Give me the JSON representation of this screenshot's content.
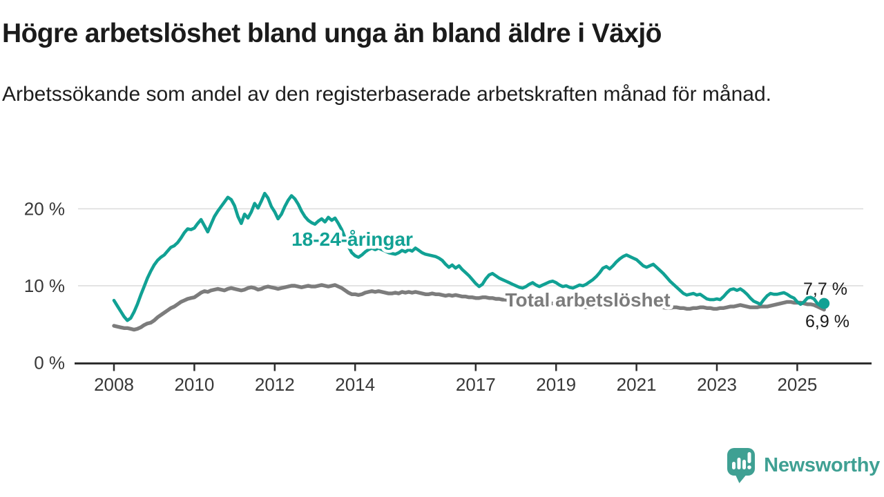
{
  "header": {
    "title": "Högre arbetslöshet bland unga än bland äldre i Växjö",
    "subtitle": "Arbetssökande som andel av den registerbaserade arbetskraften månad för månad."
  },
  "branding": {
    "logo_text": "Newsworthy",
    "logo_icon": "speech-bubble-bar-chart-icon",
    "color": "#3fa093"
  },
  "chart_data": {
    "type": "line",
    "unit": "%",
    "x": {
      "start_year": 2008,
      "start_month": 1,
      "points_per_month": 1,
      "end": "2025-09"
    },
    "x_axis": {
      "tick_years": [
        2008,
        2010,
        2012,
        2014,
        2017,
        2019,
        2021,
        2023,
        2025
      ]
    },
    "y_axis": {
      "ticks": [
        0,
        10,
        20
      ],
      "tick_labels": [
        "0 %",
        "10 %",
        "20 %"
      ],
      "range": [
        0,
        23.5
      ]
    },
    "grid": {
      "horizontal": true,
      "color": "#dadada"
    },
    "axis_color": "#2d2d2d",
    "text_color": "#383838",
    "value_label_color": "#1a1a1a",
    "series": [
      {
        "name": "Total arbetslöshet",
        "color": "#7c7c7c",
        "end_value_label": "6,9 %",
        "values": [
          4.8,
          4.7,
          4.6,
          4.5,
          4.5,
          4.4,
          4.3,
          4.4,
          4.6,
          4.9,
          5.1,
          5.2,
          5.5,
          5.9,
          6.2,
          6.5,
          6.8,
          7.1,
          7.3,
          7.6,
          7.9,
          8.1,
          8.3,
          8.4,
          8.5,
          8.8,
          9.1,
          9.3,
          9.2,
          9.4,
          9.5,
          9.6,
          9.5,
          9.4,
          9.6,
          9.7,
          9.6,
          9.5,
          9.4,
          9.5,
          9.7,
          9.8,
          9.7,
          9.5,
          9.6,
          9.8,
          9.9,
          9.8,
          9.7,
          9.6,
          9.7,
          9.8,
          9.9,
          10.0,
          10.0,
          9.9,
          9.8,
          9.9,
          10.0,
          9.9,
          9.9,
          10.0,
          10.1,
          10.0,
          9.9,
          10.0,
          10.1,
          9.9,
          9.7,
          9.4,
          9.1,
          8.9,
          8.9,
          8.8,
          8.9,
          9.1,
          9.2,
          9.3,
          9.2,
          9.3,
          9.2,
          9.1,
          9.0,
          9.0,
          9.1,
          9.0,
          9.2,
          9.1,
          9.2,
          9.1,
          9.2,
          9.1,
          9.0,
          8.9,
          8.9,
          9.0,
          8.9,
          8.9,
          8.8,
          8.7,
          8.8,
          8.7,
          8.8,
          8.7,
          8.6,
          8.6,
          8.5,
          8.5,
          8.4,
          8.4,
          8.5,
          8.5,
          8.4,
          8.4,
          8.3,
          8.3,
          8.2,
          8.2,
          8.1,
          8.1,
          8.0,
          8.0,
          7.9,
          7.9,
          8.0,
          8.0,
          7.9,
          7.8,
          7.8,
          7.8,
          7.7,
          7.7,
          7.7,
          7.6,
          7.5,
          7.5,
          7.4,
          7.4,
          7.3,
          7.3,
          7.2,
          7.2,
          7.2,
          7.2,
          7.3,
          7.4,
          7.7,
          7.9,
          8.0,
          8.0,
          7.9,
          7.9,
          7.8,
          7.7,
          7.7,
          7.6,
          7.6,
          7.5,
          7.5,
          7.4,
          7.4,
          7.3,
          7.3,
          7.2,
          7.2,
          7.1,
          7.1,
          7.2,
          7.2,
          7.1,
          7.1,
          7.0,
          7.0,
          7.1,
          7.1,
          7.2,
          7.2,
          7.1,
          7.1,
          7.0,
          7.0,
          7.1,
          7.1,
          7.2,
          7.3,
          7.3,
          7.4,
          7.5,
          7.4,
          7.3,
          7.2,
          7.2,
          7.2,
          7.3,
          7.3,
          7.3,
          7.4,
          7.5,
          7.6,
          7.7,
          7.8,
          7.9,
          7.9,
          7.8,
          7.8,
          7.8,
          7.7,
          7.6,
          7.6,
          7.5,
          7.3,
          7.1,
          6.9
        ]
      },
      {
        "name": "18-24-åringar",
        "color": "#11a194",
        "end_value_label": "7,7 %",
        "end_marker": "dot",
        "values": [
          8.1,
          7.4,
          6.7,
          6.0,
          5.5,
          5.8,
          6.6,
          7.6,
          8.8,
          9.9,
          11.0,
          11.9,
          12.7,
          13.3,
          13.7,
          14.0,
          14.5,
          15.0,
          15.2,
          15.6,
          16.2,
          16.9,
          17.4,
          17.3,
          17.5,
          18.1,
          18.6,
          17.8,
          17.0,
          18.0,
          19.0,
          19.7,
          20.3,
          20.9,
          21.5,
          21.2,
          20.4,
          19.0,
          18.1,
          19.3,
          18.8,
          19.6,
          20.7,
          20.1,
          21.0,
          22.0,
          21.4,
          20.3,
          19.6,
          18.7,
          19.3,
          20.3,
          21.1,
          21.7,
          21.3,
          20.6,
          19.7,
          19.0,
          18.5,
          18.2,
          18.0,
          18.4,
          18.7,
          18.3,
          18.9,
          18.5,
          18.8,
          18.1,
          17.3,
          16.2,
          15.1,
          14.3,
          13.9,
          13.7,
          14.0,
          14.4,
          14.7,
          14.9,
          14.7,
          14.9,
          14.7,
          14.5,
          14.3,
          14.2,
          14.1,
          14.3,
          14.6,
          14.4,
          14.7,
          14.5,
          14.9,
          14.6,
          14.3,
          14.1,
          14.0,
          13.9,
          13.8,
          13.6,
          13.3,
          12.8,
          12.4,
          12.7,
          12.3,
          12.6,
          12.1,
          11.7,
          11.3,
          10.8,
          10.3,
          9.9,
          10.2,
          10.9,
          11.4,
          11.6,
          11.3,
          11.0,
          10.8,
          10.6,
          10.4,
          10.2,
          10.0,
          9.8,
          9.7,
          9.9,
          10.2,
          10.4,
          10.1,
          9.9,
          10.1,
          10.3,
          10.5,
          10.6,
          10.4,
          10.1,
          9.9,
          10.0,
          9.8,
          9.7,
          9.9,
          10.1,
          10.0,
          10.2,
          10.5,
          10.8,
          11.2,
          11.7,
          12.3,
          12.5,
          12.2,
          12.6,
          13.1,
          13.5,
          13.8,
          14.0,
          13.8,
          13.6,
          13.4,
          13.0,
          12.6,
          12.4,
          12.6,
          12.8,
          12.4,
          12.0,
          11.6,
          11.1,
          10.6,
          10.2,
          9.8,
          9.4,
          9.0,
          8.8,
          8.9,
          9.0,
          8.8,
          8.9,
          8.6,
          8.3,
          8.2,
          8.2,
          8.3,
          8.2,
          8.6,
          9.1,
          9.5,
          9.6,
          9.4,
          9.6,
          9.3,
          8.9,
          8.4,
          8.0,
          7.8,
          7.6,
          8.2,
          8.7,
          9.0,
          8.9,
          8.9,
          9.0,
          9.1,
          8.9,
          8.6,
          8.4,
          7.9,
          7.6,
          7.9,
          8.4,
          8.5,
          8.3,
          7.7,
          7.4,
          7.7
        ]
      }
    ]
  }
}
